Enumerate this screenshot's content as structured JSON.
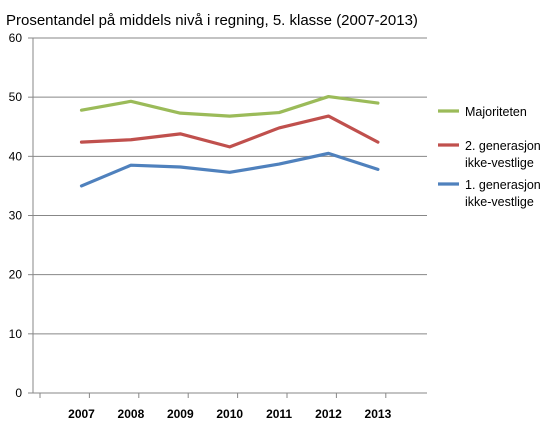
{
  "chart_data": {
    "type": "line",
    "title": "Prosentandel på middels nivå i regning, 5. klasse (2007-2013)",
    "xlabel": "",
    "ylabel": "",
    "categories": [
      "2007",
      "2008",
      "2009",
      "2010",
      "2011",
      "2012",
      "2013"
    ],
    "ylim": [
      0,
      60
    ],
    "yticks": [
      0,
      10,
      20,
      30,
      40,
      50,
      60
    ],
    "grid": "horizontal",
    "legend_position": "right",
    "series": [
      {
        "name": "Majoriteten",
        "name_lines": [
          "Majoriteten"
        ],
        "color": "#9bbb59",
        "values": [
          47.8,
          49.3,
          47.3,
          46.8,
          47.4,
          50.1,
          49.0
        ]
      },
      {
        "name": "2. generasjon ikke-vestlige",
        "name_lines": [
          "2. generasjon",
          "ikke-vestlige"
        ],
        "color": "#c0504d",
        "values": [
          42.4,
          42.8,
          43.8,
          41.6,
          44.8,
          46.8,
          42.4
        ]
      },
      {
        "name": "1. generasjon ikke-vestlige",
        "name_lines": [
          "1. generasjon",
          "ikke-vestlige"
        ],
        "color": "#4f81bd",
        "values": [
          35.0,
          38.5,
          38.2,
          37.3,
          38.7,
          40.5,
          37.8
        ]
      }
    ]
  }
}
